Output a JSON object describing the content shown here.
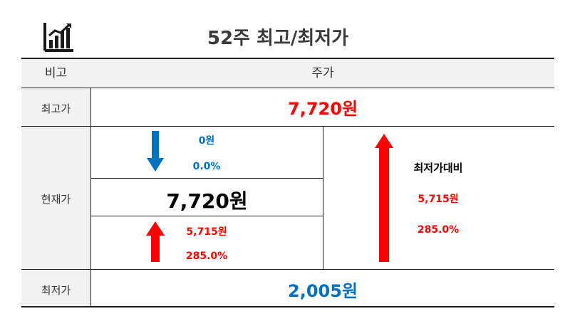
{
  "title": "52주 최고/최저가",
  "header": {
    "col_label": "비고",
    "col_value": "주가"
  },
  "high": {
    "label": "최고가",
    "value": "7,720원"
  },
  "current": {
    "label": "현재가",
    "value": "7,720원",
    "vs_high": {
      "diff": "0원",
      "pct": "0.0%",
      "direction": "down"
    },
    "vs_low": {
      "diff": "5,715원",
      "pct": "285.0%",
      "direction": "up"
    }
  },
  "low_compare": {
    "label": "최저가대비",
    "diff": "5,715원",
    "pct": "285.0%"
  },
  "low": {
    "label": "최저가",
    "value": "2,005원"
  },
  "colors": {
    "up": "#ff0000",
    "down": "#0070c0",
    "rule": "#1f1f1f",
    "header_bg": "#f2f2f2"
  },
  "icons": {
    "title_icon": "bar-chart-icon",
    "down_arrow": "arrow-down-icon",
    "up_arrow": "arrow-up-icon"
  }
}
